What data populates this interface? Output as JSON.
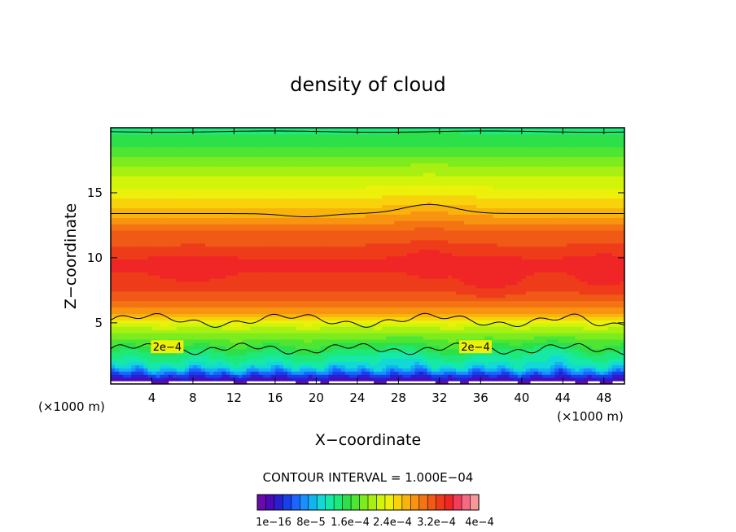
{
  "chart_data": {
    "type": "heatmap",
    "title": "density of cloud",
    "xlabel": "X−coordinate",
    "ylabel": "Z−coordinate",
    "x_unit_left": "(×1000 m)",
    "x_unit_right": "(×1000 m)",
    "xlim": [
      0,
      50
    ],
    "ylim": [
      0.3,
      20
    ],
    "xticks": [
      4,
      8,
      12,
      16,
      20,
      24,
      28,
      32,
      36,
      40,
      44,
      48
    ],
    "yticks": [
      5,
      10,
      15
    ],
    "contour_interval_text": "CONTOUR INTERVAL = 1.000E−04",
    "colorbar_labels": [
      "1e−16",
      "8e−5",
      "1.6e−4",
      "2.4e−4",
      "3.2e−4",
      "4e−4"
    ],
    "contour_labels": [
      "2e−4",
      "2e−4"
    ],
    "colors": [
      "#6a0aa8",
      "#4a0ab8",
      "#2a1fd0",
      "#1840e8",
      "#1a66ff",
      "#1a90ff",
      "#10b4f0",
      "#12d8d8",
      "#16e8a8",
      "#1ee878",
      "#2de04a",
      "#4ee632",
      "#7cec1e",
      "#a8f012",
      "#d2f40a",
      "#ecf00a",
      "#f8d20a",
      "#f8b40c",
      "#f89410",
      "#f47414",
      "#f05a16",
      "#ee3c1a",
      "#f02626",
      "#f43c5a",
      "#f66b84",
      "#f79898"
    ]
  }
}
